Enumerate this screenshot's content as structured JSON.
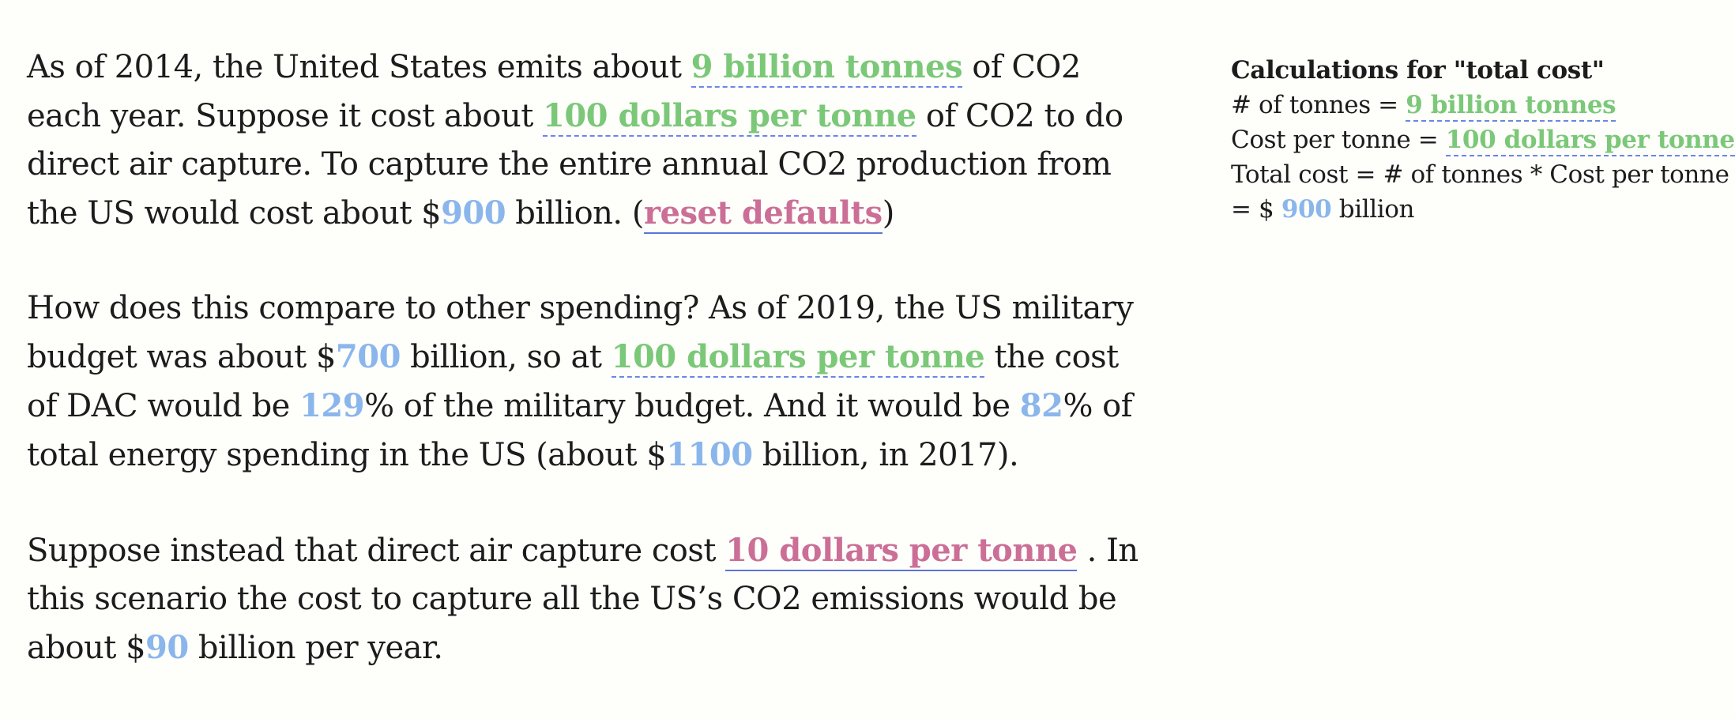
{
  "paragraph1": {
    "t1": "As of 2014, the United States emits about ",
    "tonnes": "9 billion tonnes",
    "t2": " of CO2 each year. Suppose it cost about ",
    "cost_per_tonne": "100 dollars per tonne",
    "t3": " of CO2 to do direct air capture. To capture the entire annual CO2 production from the US would cost about $",
    "total_cost": "900",
    "t4": " billion. (",
    "reset_link": "reset defaults",
    "t5": ")"
  },
  "paragraph2": {
    "t1": "How does this compare to other spending? As of 2019, the US military budget was about $",
    "military_budget": "700",
    "t2": " billion, so at ",
    "cost_per_tonne": "100 dollars per tonne",
    "t3": " the cost of DAC would be ",
    "military_pct": "129",
    "t4": "% of the military budget. And it would be ",
    "energy_pct": "82",
    "t5": "% of total energy spending in the US (about $",
    "energy_spending": "1100",
    "t6": " billion, in 2017)."
  },
  "paragraph3": {
    "t1": "Suppose instead that direct air capture cost ",
    "alt_cost": "10 dollars per tonne",
    "t2": " . In this scenario the cost to capture all the US’s CO2 emissions would be about $",
    "alt_total": "90",
    "t3": " billion per year."
  },
  "sidebar": {
    "title": "Calculations for \"total cost\"",
    "line1_label": "# of tonnes = ",
    "line1_value": "9 billion tonnes",
    "line2_label": "Cost per tonne = ",
    "line2_value": "100 dollars per tonne",
    "line3": "Total cost = # of tonnes * Cost per tonne",
    "line4_prefix": "= $ ",
    "line4_value": "900",
    "line4_suffix": " billion"
  },
  "colors": {
    "variable": "#7bc878",
    "computed": "#8ab6ec",
    "link": "#cb6f97",
    "underline": "#6a86e6"
  }
}
